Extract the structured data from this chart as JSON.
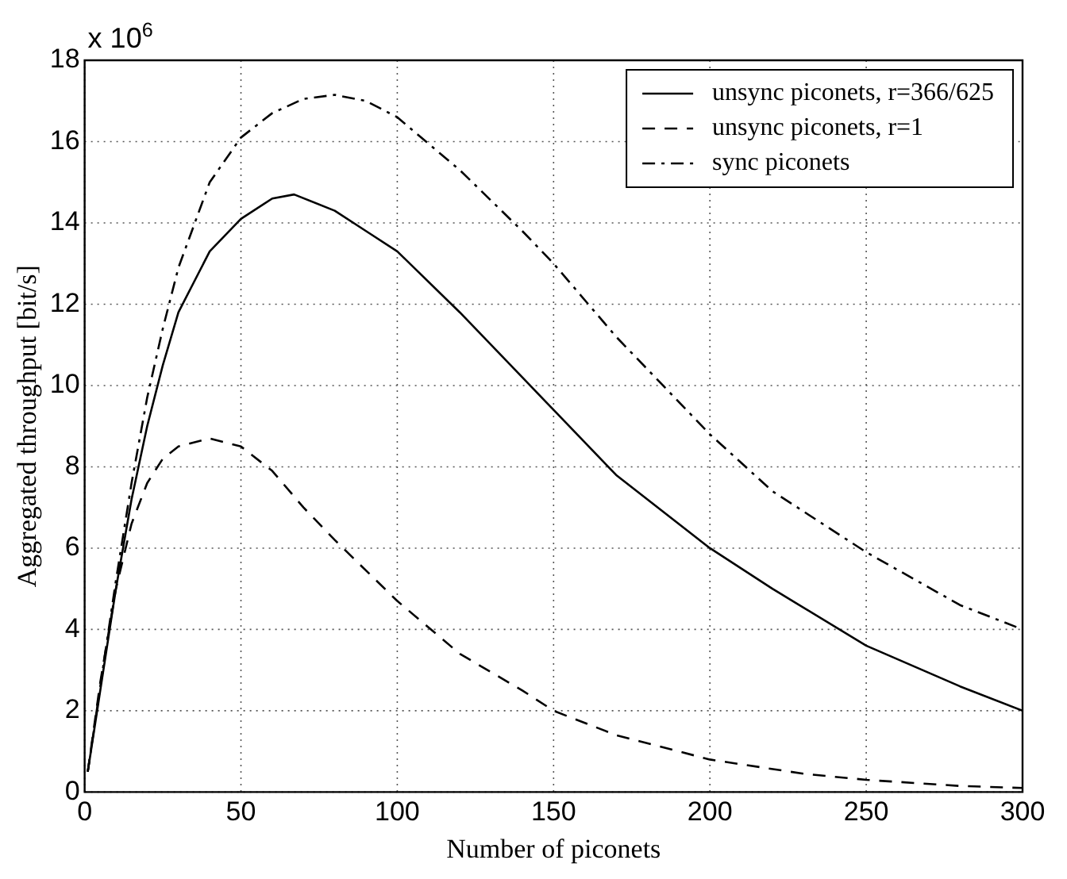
{
  "chart_data": {
    "type": "line",
    "xlabel": "Number of piconets",
    "ylabel": "Aggregated throughput [bit/s]",
    "annotations": [
      "x 10$^{6}$"
    ],
    "xlim": [
      0,
      300
    ],
    "xticks": [
      0,
      50,
      100,
      150,
      200,
      250,
      300
    ],
    "ylim": [
      0,
      18
    ],
    "yticks": [
      0,
      2,
      4,
      6,
      8,
      10,
      12,
      14,
      16,
      18
    ],
    "grid": true,
    "legend": "top right",
    "marker": "none",
    "series": [
      {
        "name": "unsync piconets, r=366/625",
        "color": "#000000",
        "line_style": "solid",
        "x": [
          1,
          5,
          10,
          15,
          20,
          25,
          30,
          40,
          50,
          60,
          67,
          80,
          90,
          100,
          120,
          140,
          150,
          170,
          200,
          220,
          250,
          280,
          300
        ],
        "values": [
          0.5,
          2.5,
          5,
          7.2,
          9,
          10.5,
          11.8,
          13.3,
          14.1,
          14.6,
          14.7,
          14.3,
          13.8,
          13.3,
          11.8,
          10.2,
          9.4,
          7.8,
          6,
          5,
          3.6,
          2.6,
          2
        ]
      },
      {
        "name": "unsync piconets, r=1",
        "color": "#000000",
        "line_style": "dashed",
        "x": [
          1,
          5,
          10,
          15,
          20,
          25,
          30,
          40,
          50,
          60,
          70,
          80,
          100,
          120,
          140,
          150,
          170,
          200,
          230,
          250,
          280,
          300
        ],
        "values": [
          0.5,
          2.7,
          5,
          6.6,
          7.6,
          8.2,
          8.5,
          8.7,
          8.5,
          7.9,
          7,
          6.2,
          4.7,
          3.4,
          2.5,
          2,
          1.4,
          0.8,
          0.45,
          0.3,
          0.15,
          0.1
        ]
      },
      {
        "name": "sync piconets",
        "color": "#000000",
        "line_style": "dashdot",
        "x": [
          1,
          5,
          10,
          15,
          20,
          25,
          30,
          40,
          50,
          60,
          70,
          80,
          90,
          100,
          120,
          140,
          150,
          170,
          200,
          220,
          250,
          280,
          300
        ],
        "values": [
          0.5,
          2.6,
          5.2,
          7.6,
          9.7,
          11.4,
          12.9,
          15,
          16.1,
          16.7,
          17.05,
          17.15,
          17,
          16.6,
          15.3,
          13.8,
          13,
          11.2,
          8.8,
          7.4,
          5.9,
          4.6,
          4
        ]
      }
    ]
  }
}
